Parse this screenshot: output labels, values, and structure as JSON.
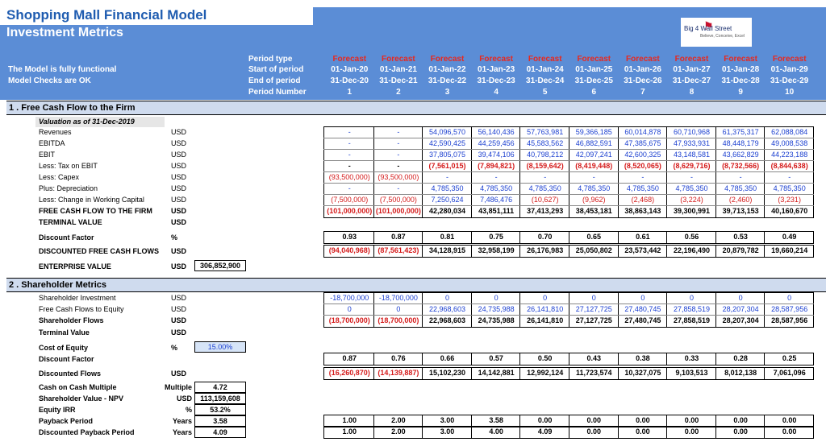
{
  "header": {
    "title": "Shopping Mall Financial Model",
    "subtitle": "Investment Metrics",
    "status1": "The Model is fully functional",
    "status2": "Model Checks are OK",
    "logo_line1": "Big 4 Wall Street",
    "logo_line2": "Believe, Conceive, Excel"
  },
  "period_labels": [
    "Period type",
    "Start of period",
    "End of period",
    "Period Number"
  ],
  "periods": [
    {
      "type": "Forecast",
      "start": "01-Jan-20",
      "end": "31-Dec-20",
      "num": "1"
    },
    {
      "type": "Forecast",
      "start": "01-Jan-21",
      "end": "31-Dec-21",
      "num": "2"
    },
    {
      "type": "Forecast",
      "start": "01-Jan-22",
      "end": "31-Dec-22",
      "num": "3"
    },
    {
      "type": "Forecast",
      "start": "01-Jan-23",
      "end": "31-Dec-23",
      "num": "4"
    },
    {
      "type": "Forecast",
      "start": "01-Jan-24",
      "end": "31-Dec-24",
      "num": "5"
    },
    {
      "type": "Forecast",
      "start": "01-Jan-25",
      "end": "31-Dec-25",
      "num": "6"
    },
    {
      "type": "Forecast",
      "start": "01-Jan-26",
      "end": "31-Dec-26",
      "num": "7"
    },
    {
      "type": "Forecast",
      "start": "01-Jan-27",
      "end": "31-Dec-27",
      "num": "8"
    },
    {
      "type": "Forecast",
      "start": "01-Jan-28",
      "end": "31-Dec-28",
      "num": "9"
    },
    {
      "type": "Forecast",
      "start": "01-Jan-29",
      "end": "31-Dec-29",
      "num": "10"
    }
  ],
  "section1": {
    "title": "1 . Free Cash Flow to the Firm",
    "valuation_label": "Valuation as of 31-Dec-2019",
    "rows": [
      {
        "label": "Revenues",
        "unit": "USD",
        "style": "blue",
        "values": [
          "-",
          "-",
          "54,096,570",
          "56,140,436",
          "57,763,981",
          "59,366,185",
          "60,014,878",
          "60,710,968",
          "61,375,317",
          "62,088,084"
        ]
      },
      {
        "label": "EBITDA",
        "unit": "USD",
        "style": "blue",
        "values": [
          "-",
          "-",
          "42,590,425",
          "44,259,456",
          "45,583,562",
          "46,882,591",
          "47,385,675",
          "47,933,931",
          "48,448,179",
          "49,008,538"
        ]
      },
      {
        "label": "EBIT",
        "unit": "USD",
        "style": "blue",
        "values": [
          "-",
          "-",
          "37,805,075",
          "39,474,106",
          "40,798,212",
          "42,097,241",
          "42,600,325",
          "43,148,581",
          "43,662,829",
          "44,223,188"
        ]
      },
      {
        "label": "Less: Tax on EBIT",
        "unit": "USD",
        "style": "redbold",
        "values": [
          "-",
          "-",
          "(7,561,015)",
          "(7,894,821)",
          "(8,159,642)",
          "(8,419,448)",
          "(8,520,065)",
          "(8,629,716)",
          "(8,732,566)",
          "(8,844,638)"
        ]
      },
      {
        "label": "Less: Capex",
        "unit": "USD",
        "style": "red",
        "values": [
          "(93,500,000)",
          "(93,500,000)",
          "-",
          "-",
          "-",
          "-",
          "-",
          "-",
          "-",
          "-"
        ]
      },
      {
        "label": "Plus: Depreciation",
        "unit": "USD",
        "style": "blue",
        "values": [
          "-",
          "-",
          "4,785,350",
          "4,785,350",
          "4,785,350",
          "4,785,350",
          "4,785,350",
          "4,785,350",
          "4,785,350",
          "4,785,350"
        ]
      },
      {
        "label": "Less: Change in Working Capital",
        "unit": "USD",
        "style": "red",
        "values": [
          "(7,500,000)",
          "(7,500,000)",
          "7,250,624",
          "7,486,476",
          "(10,627)",
          "(9,962)",
          "(2,468)",
          "(3,224)",
          "(2,460)",
          "(3,231)"
        ]
      },
      {
        "label": "FREE CASH FLOW TO THE FIRM",
        "unit": "USD",
        "style": "bold",
        "values": [
          "(101,000,000)",
          "(101,000,000)",
          "42,280,034",
          "43,851,111",
          "37,413,293",
          "38,453,181",
          "38,863,143",
          "39,300,991",
          "39,713,153",
          "40,160,670"
        ]
      }
    ],
    "terminal_label": "TERMINAL VALUE",
    "terminal_unit": "USD",
    "discount_label": "Discount Factor",
    "discount_unit": "%",
    "discount_values": [
      "0.93",
      "0.87",
      "0.81",
      "0.75",
      "0.70",
      "0.65",
      "0.61",
      "0.56",
      "0.53",
      "0.49"
    ],
    "dfcf_label": "DISCOUNTED FREE CASH FLOWS",
    "dfcf_unit": "USD",
    "dfcf_values": [
      "(94,040,968)",
      "(87,561,423)",
      "34,128,915",
      "32,958,199",
      "26,176,983",
      "25,050,802",
      "23,573,442",
      "22,196,490",
      "20,879,782",
      "19,660,214"
    ],
    "ev_label": "ENTERPRISE VALUE",
    "ev_unit": "USD",
    "ev_value": "306,852,900"
  },
  "section2": {
    "title": "2 . Shareholder Metrics",
    "rows": [
      {
        "label": "Shareholder Investment",
        "unit": "USD",
        "style": "blue",
        "values": [
          "-18,700,000",
          "-18,700,000",
          "0",
          "0",
          "0",
          "0",
          "0",
          "0",
          "0",
          "0"
        ]
      },
      {
        "label": "Free Cash Flows to Equity",
        "unit": "USD",
        "style": "blue",
        "values": [
          "0",
          "0",
          "22,968,603",
          "24,735,988",
          "26,141,810",
          "27,127,725",
          "27,480,745",
          "27,858,519",
          "28,207,304",
          "28,587,956"
        ]
      },
      {
        "label": "Shareholder Flows",
        "unit": "USD",
        "style": "bold",
        "values": [
          "(18,700,000)",
          "(18,700,000)",
          "22,968,603",
          "24,735,988",
          "26,141,810",
          "27,127,725",
          "27,480,745",
          "27,858,519",
          "28,207,304",
          "28,587,956"
        ]
      }
    ],
    "terminal_label": "Terminal Value",
    "terminal_unit": "USD",
    "coe_label": "Cost of Equity",
    "coe_unit": "%",
    "coe_value": "15.00%",
    "discount_label": "Discount Factor",
    "discount_values": [
      "0.87",
      "0.76",
      "0.66",
      "0.57",
      "0.50",
      "0.43",
      "0.38",
      "0.33",
      "0.28",
      "0.25"
    ],
    "df_label": "Discounted Flows",
    "df_unit": "USD",
    "df_values": [
      "(16,260,870)",
      "(14,139,887)",
      "15,102,230",
      "14,142,881",
      "12,992,124",
      "11,723,574",
      "10,327,075",
      "9,103,513",
      "8,012,138",
      "7,061,096"
    ],
    "metrics": [
      {
        "label": "Cash on Cash Multiple",
        "unit": "Multiple",
        "value": "4.72"
      },
      {
        "label": "Shareholder Value - NPV",
        "unit": "USD",
        "value": "113,159,608"
      },
      {
        "label": "Equity IRR",
        "unit": "%",
        "value": "53.2%"
      },
      {
        "label": "Payback Period",
        "unit": "Years",
        "value": "3.58"
      },
      {
        "label": "Discounted Payback Period",
        "unit": "Years",
        "value": "4.09"
      }
    ],
    "payback_values": [
      "1.00",
      "2.00",
      "3.00",
      "3.58",
      "0.00",
      "0.00",
      "0.00",
      "0.00",
      "0.00",
      "0.00"
    ],
    "dpayback_values": [
      "1.00",
      "2.00",
      "3.00",
      "4.00",
      "4.09",
      "0.00",
      "0.00",
      "0.00",
      "0.00",
      "0.00"
    ]
  },
  "colors": {
    "header_bg": "#5b8dd6",
    "section_bg": "#cfdbee",
    "forecast": "#e8281e",
    "blue_value": "#1b3fd0",
    "red_value": "#d41a1a",
    "title": "#1f5cb0"
  }
}
